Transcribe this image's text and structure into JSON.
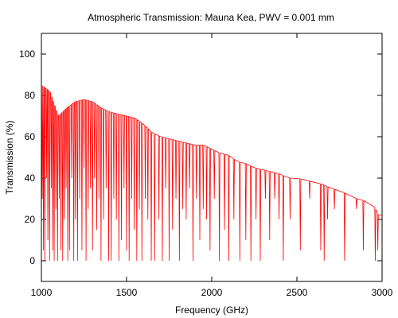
{
  "chart_data": {
    "type": "line",
    "title": "Atmospheric Transmission: Mauna Kea, PWV = 0.001 mm",
    "xlabel": "Frequency (GHz)",
    "ylabel": "Transmission (%)",
    "xlim": [
      1000,
      3000
    ],
    "ylim": [
      -10,
      110
    ],
    "xticks": [
      1000,
      1500,
      2000,
      2500,
      3000
    ],
    "yticks": [
      0,
      20,
      40,
      60,
      80,
      100
    ],
    "grid": false,
    "legend": "none",
    "line_color": "#ff0000",
    "series": [
      {
        "envelope": [
          [
            1000,
            85
          ],
          [
            1050,
            82
          ],
          [
            1100,
            70
          ],
          [
            1150,
            74
          ],
          [
            1200,
            77
          ],
          [
            1250,
            78
          ],
          [
            1300,
            77
          ],
          [
            1350,
            74
          ],
          [
            1400,
            72
          ],
          [
            1450,
            71
          ],
          [
            1500,
            70
          ],
          [
            1550,
            69
          ],
          [
            1600,
            66
          ],
          [
            1650,
            62
          ],
          [
            1700,
            60
          ],
          [
            1750,
            59
          ],
          [
            1800,
            58
          ],
          [
            1850,
            57
          ],
          [
            1900,
            56
          ],
          [
            1950,
            56
          ],
          [
            2000,
            54
          ],
          [
            2050,
            52
          ],
          [
            2100,
            51
          ],
          [
            2150,
            48
          ],
          [
            2200,
            47
          ],
          [
            2250,
            45
          ],
          [
            2300,
            44
          ],
          [
            2350,
            43
          ],
          [
            2400,
            42
          ],
          [
            2450,
            40
          ],
          [
            2500,
            40
          ],
          [
            2550,
            39
          ],
          [
            2600,
            38
          ],
          [
            2650,
            37
          ],
          [
            2700,
            35
          ],
          [
            2750,
            34
          ],
          [
            2800,
            32
          ],
          [
            2850,
            30
          ],
          [
            2900,
            29
          ],
          [
            2950,
            27
          ],
          [
            2980,
            22
          ],
          [
            3000,
            22
          ]
        ],
        "absorption_lines": [
          [
            1005,
            30
          ],
          [
            1012,
            5
          ],
          [
            1020,
            0
          ],
          [
            1030,
            40
          ],
          [
            1038,
            10
          ],
          [
            1048,
            0
          ],
          [
            1058,
            35
          ],
          [
            1067,
            5
          ],
          [
            1075,
            0
          ],
          [
            1085,
            25
          ],
          [
            1095,
            0
          ],
          [
            1105,
            30
          ],
          [
            1115,
            5
          ],
          [
            1125,
            0
          ],
          [
            1135,
            20
          ],
          [
            1145,
            35
          ],
          [
            1155,
            0
          ],
          [
            1165,
            5
          ],
          [
            1178,
            40
          ],
          [
            1190,
            0
          ],
          [
            1200,
            20
          ],
          [
            1212,
            0
          ],
          [
            1225,
            30
          ],
          [
            1238,
            5
          ],
          [
            1250,
            45
          ],
          [
            1262,
            0
          ],
          [
            1275,
            25
          ],
          [
            1288,
            35
          ],
          [
            1300,
            5
          ],
          [
            1312,
            40
          ],
          [
            1325,
            15
          ],
          [
            1338,
            30
          ],
          [
            1350,
            0
          ],
          [
            1365,
            20
          ],
          [
            1380,
            35
          ],
          [
            1395,
            0
          ],
          [
            1410,
            0
          ],
          [
            1425,
            30
          ],
          [
            1440,
            20
          ],
          [
            1455,
            0
          ],
          [
            1470,
            10
          ],
          [
            1485,
            35
          ],
          [
            1500,
            5
          ],
          [
            1515,
            0
          ],
          [
            1530,
            30
          ],
          [
            1545,
            15
          ],
          [
            1560,
            0
          ],
          [
            1575,
            25
          ],
          [
            1590,
            0
          ],
          [
            1610,
            30
          ],
          [
            1625,
            20
          ],
          [
            1645,
            0
          ],
          [
            1665,
            0
          ],
          [
            1690,
            20
          ],
          [
            1710,
            0
          ],
          [
            1730,
            35
          ],
          [
            1750,
            0
          ],
          [
            1770,
            15
          ],
          [
            1790,
            30
          ],
          [
            1810,
            0
          ],
          [
            1830,
            25
          ],
          [
            1850,
            20
          ],
          [
            1870,
            35
          ],
          [
            1890,
            0
          ],
          [
            1910,
            30
          ],
          [
            1930,
            10
          ],
          [
            1950,
            25
          ],
          [
            1970,
            20
          ],
          [
            1990,
            5
          ],
          [
            2015,
            30
          ],
          [
            2045,
            0
          ],
          [
            2075,
            15
          ],
          [
            2100,
            0
          ],
          [
            2130,
            20
          ],
          [
            2165,
            0
          ],
          [
            2200,
            10
          ],
          [
            2230,
            0
          ],
          [
            2260,
            20
          ],
          [
            2285,
            0
          ],
          [
            2315,
            30
          ],
          [
            2340,
            10
          ],
          [
            2370,
            30
          ],
          [
            2395,
            20
          ],
          [
            2420,
            0
          ],
          [
            2460,
            20
          ],
          [
            2520,
            5
          ],
          [
            2575,
            30
          ],
          [
            2640,
            5
          ],
          [
            2660,
            0
          ],
          [
            2680,
            20
          ],
          [
            2720,
            25
          ],
          [
            2780,
            0
          ],
          [
            2850,
            25
          ],
          [
            2890,
            5
          ],
          [
            2960,
            0
          ],
          [
            2975,
            5
          ]
        ]
      }
    ]
  }
}
